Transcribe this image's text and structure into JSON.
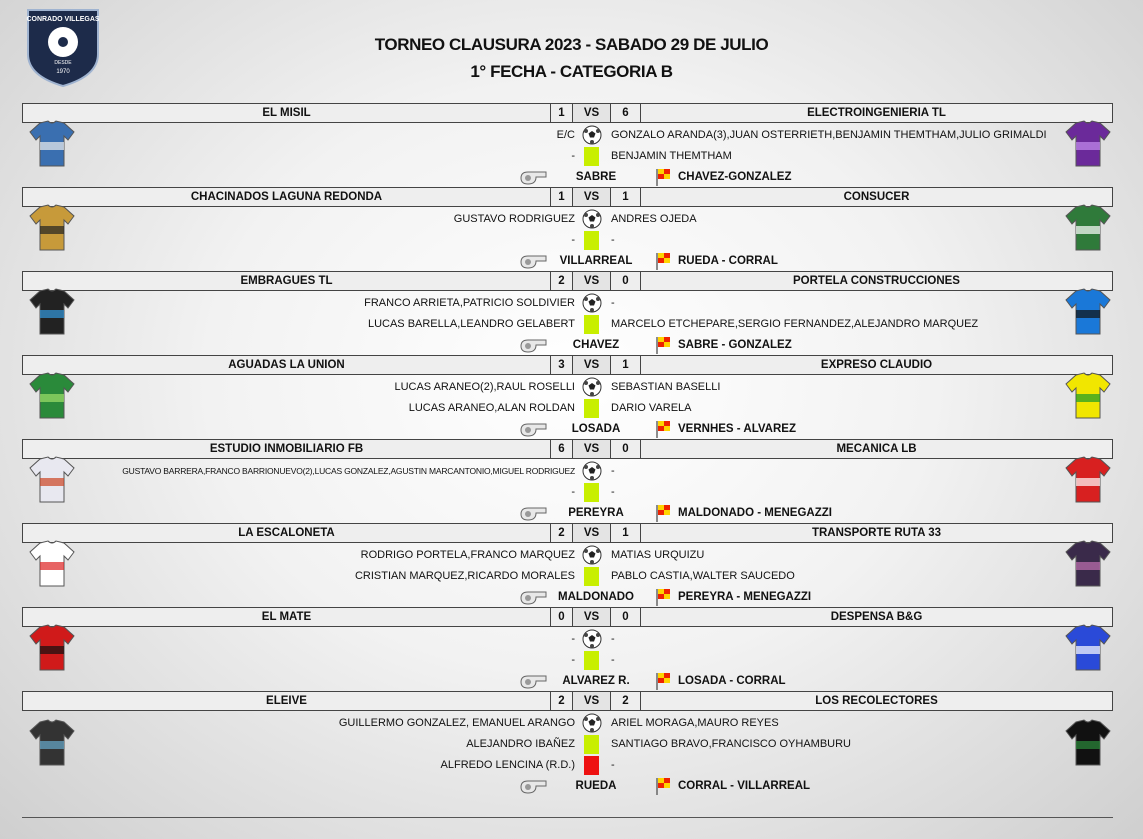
{
  "logo": {
    "name": "CONRADO VILLEGAS",
    "since": "DESDE",
    "year": "1970"
  },
  "header": {
    "title": "TORNEO CLAUSURA 2023 - SABADO 29 DE JULIO",
    "subtitle": "1° FECHA - CATEGORIA B"
  },
  "matches": [
    {
      "home": "EL MISIL",
      "home_score": 1,
      "vs": "VS",
      "away_score": 6,
      "away": "ELECTROINGENIERIA TL",
      "rows": [
        {
          "home": "E/C",
          "away": "GONZALO ARANDA(3),JUAN OSTERRIETH,BENJAMIN THEMTHAM,JULIO GRIMALDI"
        },
        {
          "home": "-",
          "away": "BENJAMIN THEMTHAM"
        }
      ],
      "referee": "SABRE",
      "assistants": "CHAVEZ-GONZALEZ"
    },
    {
      "home": "CHACINADOS LAGUNA REDONDA",
      "home_score": 1,
      "vs": "VS",
      "away_score": 1,
      "away": "CONSUCER",
      "rows": [
        {
          "home": "GUSTAVO RODRIGUEZ",
          "away": "ANDRES OJEDA"
        },
        {
          "home": "-",
          "away": "-"
        }
      ],
      "referee": "VILLARREAL",
      "assistants": "RUEDA - CORRAL"
    },
    {
      "home": "EMBRAGUES TL",
      "home_score": 2,
      "vs": "VS",
      "away_score": 0,
      "away": "PORTELA CONSTRUCCIONES",
      "rows": [
        {
          "home": "FRANCO ARRIETA,PATRICIO SOLDIVIER",
          "away": "-"
        },
        {
          "home": "LUCAS BARELLA,LEANDRO GELABERT",
          "away": "MARCELO ETCHEPARE,SERGIO FERNANDEZ,ALEJANDRO MARQUEZ"
        }
      ],
      "referee": "CHAVEZ",
      "assistants": "SABRE - GONZALEZ"
    },
    {
      "home": "AGUADAS LA UNION",
      "home_score": 3,
      "vs": "VS",
      "away_score": 1,
      "away": "EXPRESO CLAUDIO",
      "rows": [
        {
          "home": "LUCAS ARANEO(2),RAUL ROSELLI",
          "away": "SEBASTIAN BASELLI"
        },
        {
          "home": "LUCAS ARANEO,ALAN ROLDAN",
          "away": "DARIO VARELA"
        }
      ],
      "referee": "LOSADA",
      "assistants": "VERNHES - ALVAREZ"
    },
    {
      "home": "ESTUDIO INMOBILIARIO FB",
      "home_score": 6,
      "vs": "VS",
      "away_score": 0,
      "away": "MECANICA LB",
      "rows": [
        {
          "home": "GUSTAVO BARRERA,FRANCO BARRIONUEVO(2),LUCAS GONZALEZ,AGUSTIN MARCANTONIO,MIGUEL RODRIGUEZ",
          "away": "-"
        },
        {
          "home": "-",
          "away": "-"
        }
      ],
      "referee": "PEREYRA",
      "assistants": "MALDONADO - MENEGAZZI"
    },
    {
      "home": "LA ESCALONETA",
      "home_score": 2,
      "vs": "VS",
      "away_score": 1,
      "away": "TRANSPORTE RUTA 33",
      "rows": [
        {
          "home": "RODRIGO PORTELA,FRANCO MARQUEZ",
          "away": "MATIAS URQUIZU"
        },
        {
          "home": "CRISTIAN MARQUEZ,RICARDO MORALES",
          "away": "PABLO CASTIA,WALTER SAUCEDO"
        }
      ],
      "referee": "MALDONADO",
      "assistants": "PEREYRA - MENEGAZZI"
    },
    {
      "home": "EL MATE",
      "home_score": 0,
      "vs": "VS",
      "away_score": 0,
      "away": "DESPENSA B&G",
      "rows": [
        {
          "home": "-",
          "away": "-"
        },
        {
          "home": "-",
          "away": "-"
        }
      ],
      "referee": "ALVAREZ R.",
      "assistants": "LOSADA - CORRAL"
    },
    {
      "home": "ELEIVE",
      "home_score": 2,
      "vs": "VS",
      "away_score": 2,
      "away": "LOS RECOLECTORES",
      "rows": [
        {
          "home": "GUILLERMO GONZALEZ, EMANUEL ARANGO",
          "away": "ARIEL MORAGA,MAURO REYES"
        },
        {
          "home": "ALEJANDRO IBAÑEZ",
          "away": "SANTIAGO BRAVO,FRANCISCO OYHAMBURU"
        },
        {
          "home": "ALFREDO LENCINA (R.D.)",
          "away": "-"
        }
      ],
      "referee": "RUEDA",
      "assistants": "CORRAL - VILLARREAL"
    }
  ]
}
